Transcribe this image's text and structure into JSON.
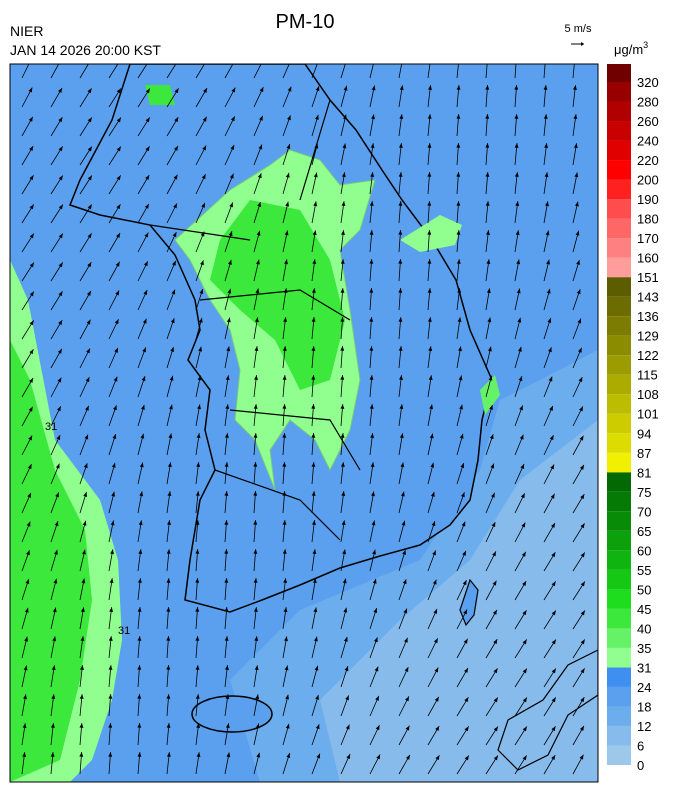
{
  "header": {
    "source": "NIER",
    "title": "PM-10",
    "timestamp": "JAN 14 2026 20:00 KST"
  },
  "wind_legend": {
    "label": "5 m/s"
  },
  "colorbar": {
    "unit": "μg/m",
    "unit_power": "3",
    "labels": [
      "0",
      "6",
      "12",
      "18",
      "24",
      "31",
      "35",
      "40",
      "45",
      "50",
      "55",
      "60",
      "65",
      "70",
      "75",
      "81",
      "87",
      "94",
      "101",
      "108",
      "115",
      "122",
      "129",
      "136",
      "143",
      "151",
      "160",
      "170",
      "180",
      "190",
      "200",
      "220",
      "240",
      "260",
      "280",
      "320"
    ],
    "colors": [
      "#9dc8ea",
      "#86bbeb",
      "#6caeed",
      "#5aa0ee",
      "#3f8ff0",
      "#90ff90",
      "#66f266",
      "#3ce83c",
      "#1edc1e",
      "#14c814",
      "#10b410",
      "#0ca00c",
      "#088c08",
      "#057a05",
      "#036a03",
      "#f0f000",
      "#dcdc00",
      "#cccc00",
      "#bcbc00",
      "#acac00",
      "#9c9c00",
      "#8c8c00",
      "#7c7c00",
      "#6c6c00",
      "#5c5c00",
      "#ff9c9c",
      "#ff8080",
      "#ff6666",
      "#ff4c4c",
      "#ff2020",
      "#ff0000",
      "#e00000",
      "#c80000",
      "#b00000",
      "#980000",
      "#700000"
    ]
  },
  "map": {
    "contour_labels": [
      "31",
      "31"
    ]
  }
}
